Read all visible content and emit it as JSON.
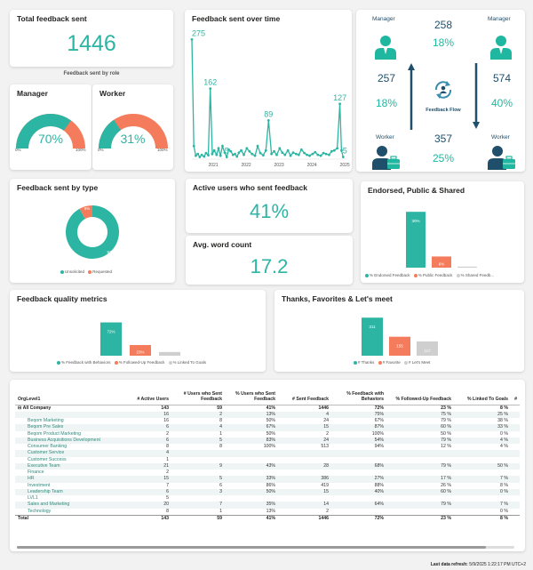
{
  "cards": {
    "total": {
      "title": "Total feedback sent",
      "value": "1446"
    },
    "by_role": {
      "caption": "Feedback sent by role"
    },
    "manager": {
      "title": "Manager",
      "pct": "70%",
      "min": "0%",
      "max": "100%",
      "fraction": 0.7
    },
    "worker": {
      "title": "Worker",
      "pct": "31%",
      "min": "0%",
      "max": "100%",
      "fraction": 0.31
    },
    "overtime": {
      "title": "Feedback sent over time"
    },
    "flow": {
      "center_label": "Feedback Flow",
      "tl_label": "Manager",
      "tr_label": "Manager",
      "bl_label": "Worker",
      "br_label": "Worker",
      "top_count": "258",
      "top_pct": "18%",
      "left_count": "257",
      "left_pct": "18%",
      "right_count": "574",
      "right_pct": "40%",
      "bottom_count": "357",
      "bottom_pct": "25%"
    },
    "by_type": {
      "title": "Feedback sent by type",
      "unsolicited_label": "92%",
      "requested_label": "8%",
      "legend_unsolicited": "Unsolicited",
      "legend_requested": "Requested"
    },
    "active": {
      "title": "Active users who sent feedback",
      "value": "41%"
    },
    "wordcount": {
      "title": "Avg. word count",
      "value": "17.2"
    },
    "endorsed": {
      "title": "Endorsed, Public & Shared",
      "legend": [
        "% Endorsed Feedback",
        "% Public Feedback",
        "% Shared Feedb..."
      ]
    },
    "quality": {
      "title": "Feedback quality metrics",
      "legend": [
        "% Feedback with Behaviors",
        "% Followed-Up Feedback",
        "% Linked To Goals"
      ]
    },
    "thanks": {
      "title": "Thanks, Favorites & Let's meet",
      "legend": [
        "# Thanks",
        "# Favorite",
        "# Let's Meet"
      ]
    }
  },
  "chart_data": [
    {
      "type": "line",
      "title": "Feedback sent over time",
      "x_ticks": [
        "2021",
        "2022",
        "2023",
        "2024",
        "2025"
      ],
      "x": [
        2020.5,
        2020.56,
        2020.62,
        2020.68,
        2020.74,
        2020.8,
        2020.87,
        2020.93,
        2021.0,
        2021.06,
        2021.12,
        2021.18,
        2021.25,
        2021.31,
        2021.37,
        2021.43,
        2021.5,
        2021.56,
        2021.62,
        2021.68,
        2021.75,
        2021.81,
        2021.87,
        2021.93,
        2022.0,
        2022.08,
        2022.17,
        2022.25,
        2022.33,
        2022.42,
        2022.5,
        2022.58,
        2022.67,
        2022.75,
        2022.83,
        2022.92,
        2023.0,
        2023.08,
        2023.17,
        2023.25,
        2023.33,
        2023.42,
        2023.5,
        2023.58,
        2023.67,
        2023.75,
        2023.83,
        2023.92,
        2024.0,
        2024.08,
        2024.17,
        2024.25,
        2024.33,
        2024.42,
        2024.5,
        2024.58,
        2024.67,
        2024.75,
        2024.83,
        2024.92,
        2025.0,
        2025.05,
        2025.1
      ],
      "y": [
        275,
        30,
        8,
        12,
        5,
        10,
        6,
        14,
        9,
        162,
        12,
        20,
        10,
        25,
        8,
        30,
        15,
        5,
        22,
        18,
        10,
        12,
        6,
        15,
        20,
        10,
        25,
        18,
        12,
        8,
        30,
        14,
        9,
        20,
        89,
        12,
        18,
        10,
        25,
        15,
        10,
        20,
        8,
        15,
        12,
        10,
        22,
        14,
        10,
        8,
        12,
        16,
        10,
        8,
        14,
        12,
        10,
        18,
        20,
        25,
        127,
        20,
        5
      ],
      "point_labels": [
        {
          "i": 0,
          "text": "275"
        },
        {
          "i": 9,
          "text": "162"
        },
        {
          "i": 17,
          "text": "5"
        },
        {
          "i": 34,
          "text": "89"
        },
        {
          "i": 60,
          "text": "127"
        },
        {
          "i": 62,
          "text": "5"
        }
      ],
      "ylim": [
        0,
        290
      ],
      "color": "#2db5a3"
    },
    {
      "type": "pie",
      "title": "Feedback sent by type",
      "labels": [
        "Unsolicited",
        "Requested"
      ],
      "values": [
        92,
        8
      ],
      "colors": [
        "#2db5a3",
        "#f47c5c"
      ]
    },
    {
      "type": "bar",
      "title": "Endorsed, Public & Shared",
      "categories": [
        "% Endorsed Feedback",
        "% Public Feedback",
        "% Shared Feedb..."
      ],
      "values": [
        30,
        6,
        0.5
      ],
      "data_labels": [
        "30%",
        "6%",
        ""
      ],
      "colors": [
        "#2db5a3",
        "#f47c5c",
        "#cfcfcf"
      ],
      "ylim": [
        0,
        32
      ]
    },
    {
      "type": "bar",
      "title": "Feedback quality metrics",
      "categories": [
        "% Feedback with Behaviors",
        "% Followed-Up Feedback",
        "% Linked To Goals"
      ],
      "values": [
        72,
        23,
        8
      ],
      "data_labels": [
        "72%",
        "23%",
        ""
      ],
      "colors": [
        "#2db5a3",
        "#f47c5c",
        "#cfcfcf"
      ],
      "ylim": [
        0,
        75
      ]
    },
    {
      "type": "bar",
      "title": "Thanks, Favorites & Let's meet",
      "categories": [
        "# Thanks",
        "# Favorite",
        "# Let's Meet"
      ],
      "values": [
        311,
        155,
        117
      ],
      "data_labels": [
        "311",
        "155",
        "117"
      ],
      "colors": [
        "#2db5a3",
        "#f47c5c",
        "#cfcfcf"
      ],
      "ylim": [
        0,
        320
      ]
    }
  ],
  "table": {
    "headers": [
      "OrgLevel1",
      "# Active Users",
      "# Users who Sent Feedback",
      "% Users who Sent Feedback",
      "# Sent Feedback",
      "% Feedback with Behaviors",
      "% Followed-Up Feedback",
      "% Linked To Goals",
      "#"
    ],
    "rows": [
      {
        "cells": [
          "⊟  All Company",
          "143",
          "59",
          "41%",
          "1446",
          "72%",
          "23 %",
          "8 %"
        ],
        "top": true
      },
      {
        "cells": [
          "",
          "16",
          "2",
          "13%",
          "4",
          "75%",
          "75 %",
          "25 %"
        ]
      },
      {
        "cells": [
          "Beqom Marketing",
          "16",
          "8",
          "50%",
          "24",
          "67%",
          "79 %",
          "38 %"
        ]
      },
      {
        "cells": [
          "Beqom Pre Sales",
          "6",
          "4",
          "67%",
          "15",
          "87%",
          "60 %",
          "33 %"
        ]
      },
      {
        "cells": [
          "Beqom Product Marketing",
          "2",
          "1",
          "50%",
          "2",
          "100%",
          "50 %",
          "0 %"
        ]
      },
      {
        "cells": [
          "Business Acquisitions Development",
          "6",
          "5",
          "83%",
          "24",
          "54%",
          "79 %",
          "4 %"
        ]
      },
      {
        "cells": [
          "Consumer Banking",
          "8",
          "8",
          "100%",
          "513",
          "94%",
          "12 %",
          "4 %"
        ]
      },
      {
        "cells": [
          "Customer Service",
          "4",
          "",
          "",
          "",
          "",
          "",
          ""
        ]
      },
      {
        "cells": [
          "Customer Success",
          "1",
          "",
          "",
          "",
          "",
          "",
          ""
        ]
      },
      {
        "cells": [
          "Executive Team",
          "21",
          "9",
          "43%",
          "28",
          "68%",
          "79 %",
          "50 %"
        ]
      },
      {
        "cells": [
          "Finance",
          "2",
          "",
          "",
          "",
          "",
          "",
          ""
        ]
      },
      {
        "cells": [
          "HR",
          "15",
          "5",
          "33%",
          "386",
          "27%",
          "17 %",
          "7 %"
        ]
      },
      {
        "cells": [
          "Investment",
          "7",
          "6",
          "86%",
          "419",
          "88%",
          "26 %",
          "8 %"
        ]
      },
      {
        "cells": [
          "Leadership Team",
          "6",
          "3",
          "50%",
          "15",
          "40%",
          "60 %",
          "0 %"
        ]
      },
      {
        "cells": [
          "LVL1",
          "5",
          "",
          "",
          "",
          "",
          "",
          ""
        ]
      },
      {
        "cells": [
          "Sales and Marketing",
          "20",
          "7",
          "35%",
          "14",
          "64%",
          "79 %",
          "7 %"
        ]
      },
      {
        "cells": [
          "Technology",
          "8",
          "1",
          "13%",
          "2",
          "",
          "",
          "0 %"
        ]
      }
    ],
    "total": [
      "Total",
      "143",
      "59",
      "41%",
      "1446",
      "72%",
      "23 %",
      "8 %"
    ]
  },
  "footer": {
    "label": "Last data refresh:",
    "value": "5/9/2025 1:22:17 PM UTC+2"
  }
}
